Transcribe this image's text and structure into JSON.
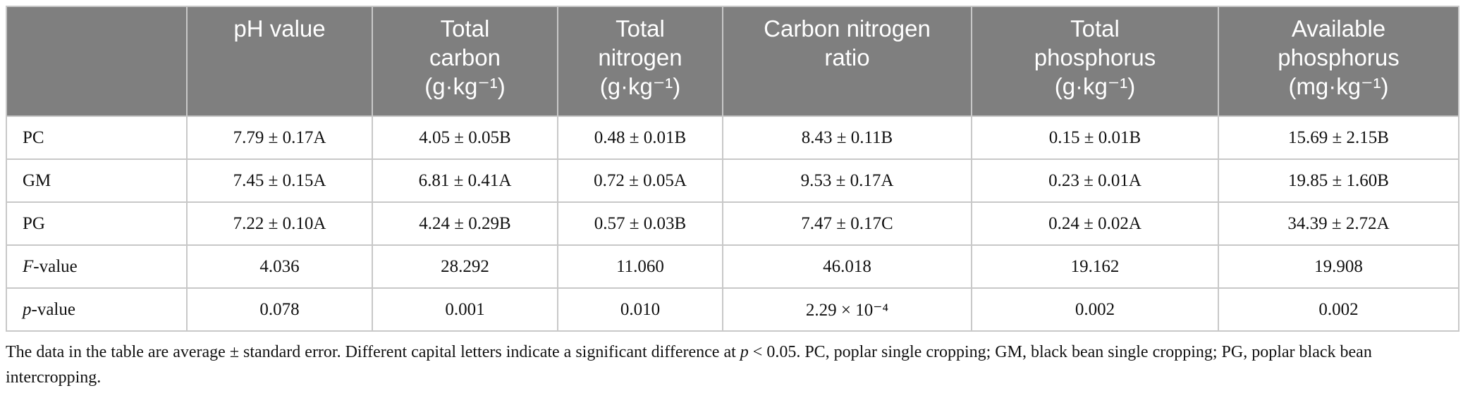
{
  "table": {
    "headers": [
      {
        "lines": [
          ""
        ]
      },
      {
        "lines": [
          "pH value"
        ]
      },
      {
        "lines": [
          "Total",
          "carbon",
          "(g·kg⁻¹)"
        ]
      },
      {
        "lines": [
          "Total",
          "nitrogen",
          "(g·kg⁻¹)"
        ]
      },
      {
        "lines": [
          "Carbon nitrogen",
          "ratio"
        ]
      },
      {
        "lines": [
          "Total",
          "phosphorus",
          "(g·kg⁻¹)"
        ]
      },
      {
        "lines": [
          "Available",
          "phosphorus",
          "(mg·kg⁻¹)"
        ]
      }
    ],
    "rows": [
      {
        "label_italic": "",
        "label_rest": "PC",
        "cells": [
          "7.79 ± 0.17A",
          "4.05 ± 0.05B",
          "0.48 ± 0.01B",
          "8.43 ± 0.11B",
          "0.15 ± 0.01B",
          "15.69 ± 2.15B"
        ]
      },
      {
        "label_italic": "",
        "label_rest": "GM",
        "cells": [
          "7.45 ± 0.15A",
          "6.81 ± 0.41A",
          "0.72 ± 0.05A",
          "9.53 ± 0.17A",
          "0.23 ± 0.01A",
          "19.85 ± 1.60B"
        ]
      },
      {
        "label_italic": "",
        "label_rest": "PG",
        "cells": [
          "7.22 ± 0.10A",
          "4.24 ± 0.29B",
          "0.57 ± 0.03B",
          "7.47 ± 0.17C",
          "0.24 ± 0.02A",
          "34.39 ± 2.72A"
        ]
      },
      {
        "label_italic": "F",
        "label_rest": "-value",
        "cells": [
          "4.036",
          "28.292",
          "11.060",
          "46.018",
          "19.162",
          "19.908"
        ]
      },
      {
        "label_italic": "p",
        "label_rest": "-value",
        "cells": [
          "0.078",
          "0.001",
          "0.010",
          "2.29 × 10⁻⁴",
          "0.002",
          "0.002"
        ]
      }
    ]
  },
  "footnote": {
    "part1": "The data in the table are average ± standard error. Different capital letters indicate a significant difference at ",
    "p_symbol": "p",
    "part2": " < 0.05. PC, poplar single cropping; GM, black bean single cropping; PG, poplar black bean intercropping."
  }
}
